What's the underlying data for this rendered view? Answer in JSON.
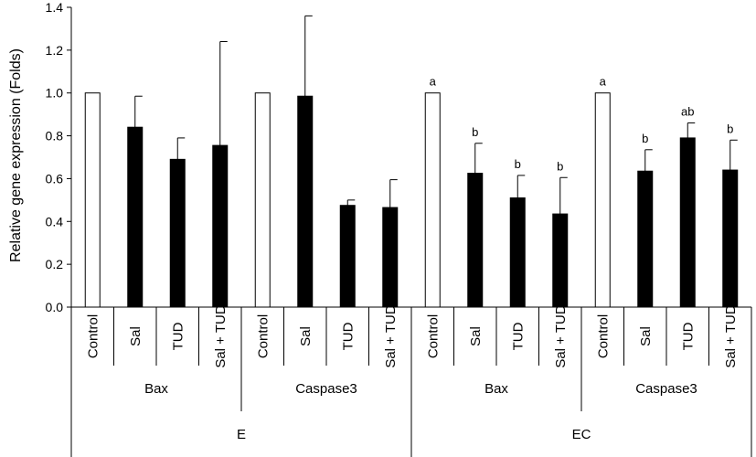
{
  "chart_data": {
    "type": "bar",
    "ylabel": "Relative gene expression (Folds)",
    "ylim": [
      0,
      1.4
    ],
    "yticks": [
      "0.0",
      "0.2",
      "0.4",
      "0.6",
      "0.8",
      "1.0",
      "1.2",
      "1.4"
    ],
    "grid": false,
    "colors": {
      "control": "#ffffff",
      "treated": "#000000",
      "outline": "#000000"
    },
    "bars": [
      {
        "category": "Control",
        "gene": "Bax",
        "tissue": "E",
        "value": 1.0,
        "error": 0,
        "label": ""
      },
      {
        "category": "Sal",
        "gene": "Bax",
        "tissue": "E",
        "value": 0.84,
        "error": 0.145,
        "label": ""
      },
      {
        "category": "TUD",
        "gene": "Bax",
        "tissue": "E",
        "value": 0.69,
        "error": 0.1,
        "label": ""
      },
      {
        "category": "Sal + TUD",
        "gene": "Bax",
        "tissue": "E",
        "value": 0.755,
        "error": 0.485,
        "label": ""
      },
      {
        "category": "Control",
        "gene": "Caspase3",
        "tissue": "E",
        "value": 1.0,
        "error": 0,
        "label": ""
      },
      {
        "category": "Sal",
        "gene": "Caspase3",
        "tissue": "E",
        "value": 0.985,
        "error": 0.375,
        "label": ""
      },
      {
        "category": "TUD",
        "gene": "Caspase3",
        "tissue": "E",
        "value": 0.475,
        "error": 0.025,
        "label": ""
      },
      {
        "category": "Sal + TUD",
        "gene": "Caspase3",
        "tissue": "E",
        "value": 0.465,
        "error": 0.13,
        "label": ""
      },
      {
        "category": "Control",
        "gene": "Bax",
        "tissue": "EC",
        "value": 1.0,
        "error": 0,
        "label": "a"
      },
      {
        "category": "Sal",
        "gene": "Bax",
        "tissue": "EC",
        "value": 0.625,
        "error": 0.14,
        "label": "b"
      },
      {
        "category": "TUD",
        "gene": "Bax",
        "tissue": "EC",
        "value": 0.51,
        "error": 0.105,
        "label": "b"
      },
      {
        "category": "Sal + TUD",
        "gene": "Bax",
        "tissue": "EC",
        "value": 0.435,
        "error": 0.17,
        "label": "b"
      },
      {
        "category": "Control",
        "gene": "Caspase3",
        "tissue": "EC",
        "value": 1.0,
        "error": 0,
        "label": "a"
      },
      {
        "category": "Sal",
        "gene": "Caspase3",
        "tissue": "EC",
        "value": 0.635,
        "error": 0.1,
        "label": "b"
      },
      {
        "category": "TUD",
        "gene": "Caspase3",
        "tissue": "EC",
        "value": 0.79,
        "error": 0.07,
        "label": "ab"
      },
      {
        "category": "Sal + TUD",
        "gene": "Caspase3",
        "tissue": "EC",
        "value": 0.64,
        "error": 0.14,
        "label": "b"
      }
    ],
    "genes": [
      {
        "name": "Bax"
      },
      {
        "name": "Caspase3"
      },
      {
        "name": "Bax"
      },
      {
        "name": "Caspase3"
      }
    ],
    "tissues": [
      {
        "name": "E"
      },
      {
        "name": "EC"
      }
    ]
  }
}
